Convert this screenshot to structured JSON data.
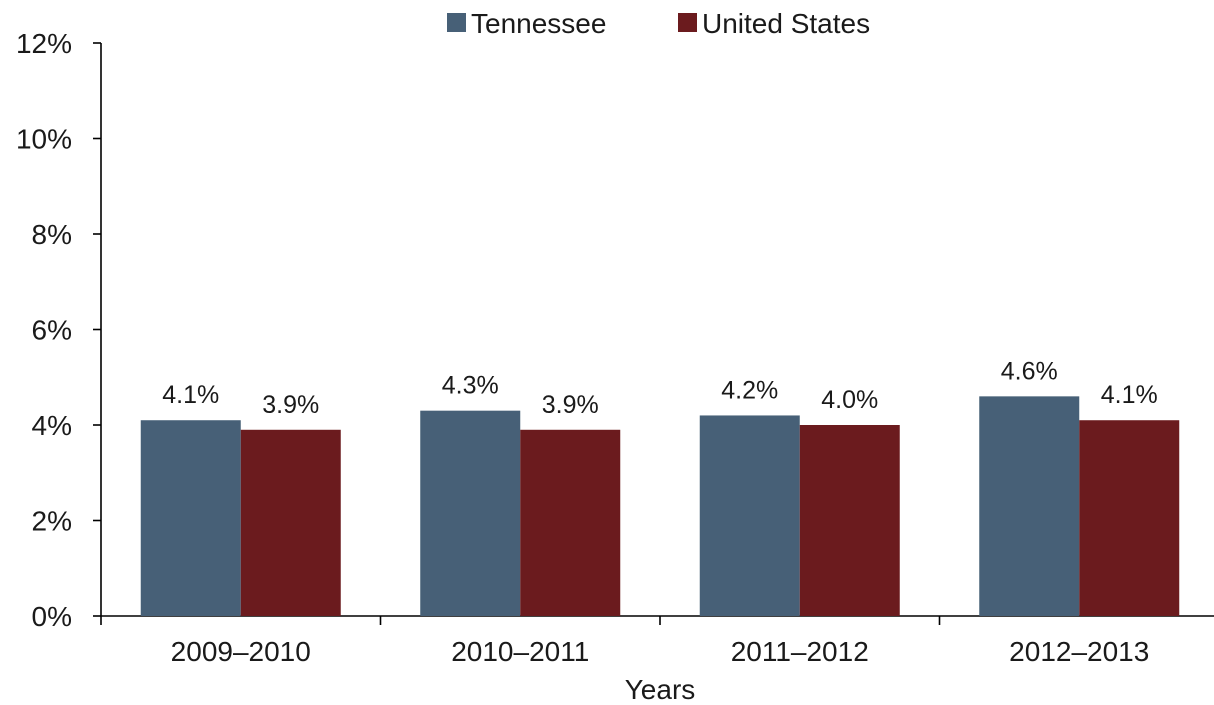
{
  "chart_data": {
    "type": "bar",
    "title": "",
    "xlabel": "Years",
    "ylabel": "",
    "categories": [
      "2009–2010",
      "2010–2011",
      "2011–2012",
      "2012–2013"
    ],
    "series": [
      {
        "name": "Tennessee",
        "color": "#476077",
        "values": [
          4.1,
          4.3,
          4.2,
          4.6
        ],
        "labels": [
          "4.1%",
          "4.3%",
          "4.2%",
          "4.6%"
        ]
      },
      {
        "name": "United States",
        "color": "#6b1b1e",
        "values": [
          3.9,
          3.9,
          4.0,
          4.1
        ],
        "labels": [
          "3.9%",
          "3.9%",
          "4.0%",
          "4.1%"
        ]
      }
    ],
    "ylim": [
      0,
      12
    ],
    "yticks": [
      0,
      2,
      4,
      6,
      8,
      10,
      12
    ],
    "ytick_labels": [
      "0%",
      "2%",
      "4%",
      "6%",
      "8%",
      "10%",
      "12%"
    ],
    "grid": false,
    "legend_position": "top"
  }
}
